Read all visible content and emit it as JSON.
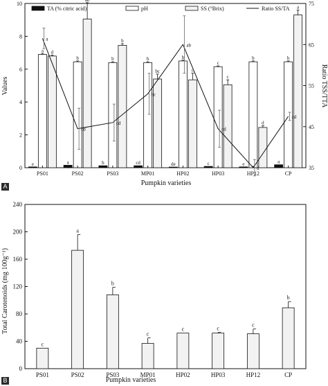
{
  "chart_data": [
    {
      "type": "bar",
      "panel_label": "A",
      "xlabel": "Pumpkin varieties",
      "ylabel": "Values",
      "y2label": "Ratio TSS/TTA",
      "categories": [
        "PS01",
        "PS02",
        "PS03",
        "MP01",
        "HP02",
        "HP03",
        "HP12",
        "CP"
      ],
      "ylim": [
        0,
        10
      ],
      "yticks": [
        0,
        2,
        4,
        6,
        8,
        10
      ],
      "y2lim": [
        35,
        75
      ],
      "y2ticks": [
        35,
        45,
        55,
        65,
        75
      ],
      "legend_position": "top",
      "series": [
        {
          "name": "TA (% citric acid)",
          "kind": "bar",
          "fill": "#111111",
          "axis": "left",
          "values": [
            0.05,
            0.15,
            0.12,
            0.12,
            0.04,
            0.08,
            0.05,
            0.18
          ],
          "errors": [
            0,
            0,
            0,
            0,
            0,
            0,
            0,
            0
          ],
          "letters": [
            "e",
            "a",
            "b",
            "cd",
            "de",
            "c",
            "e",
            "a"
          ]
        },
        {
          "name": "pH",
          "kind": "bar",
          "fill": "#ffffff",
          "axis": "left",
          "values": [
            6.9,
            6.45,
            6.4,
            6.4,
            6.5,
            6.15,
            6.45,
            6.45
          ],
          "errors": [
            0.05,
            0.05,
            0.05,
            0.05,
            0.05,
            0.05,
            0.05,
            0.05
          ],
          "letters": [
            "a",
            "b",
            "b",
            "b",
            "b",
            "c",
            "b",
            "b"
          ]
        },
        {
          "name": "SS (°Brix)",
          "kind": "bar",
          "fill": "#f2f2f2",
          "axis": "left",
          "values": [
            6.8,
            9.05,
            7.45,
            5.4,
            5.35,
            5.05,
            2.45,
            9.3
          ],
          "errors": [
            0.05,
            1.0,
            0.1,
            0.3,
            0.4,
            0.3,
            0.1,
            0.3
          ],
          "letters": [
            "d",
            "ab",
            "b",
            "bc",
            "c",
            "c",
            "d",
            "a"
          ]
        },
        {
          "name": "Ratio SS/TA",
          "kind": "line",
          "axis": "right",
          "values": [
            66.5,
            44.5,
            46.0,
            53.0,
            65.0,
            44.5,
            35.0,
            47.5
          ],
          "errors": [
            2.5,
            5.0,
            4.5,
            5.0,
            7.0,
            4.5,
            2.0,
            1.0
          ],
          "letters": [
            "a",
            "cd",
            "cd",
            "bc",
            "ab",
            "cd",
            "d",
            "cd"
          ]
        }
      ]
    },
    {
      "type": "bar",
      "panel_label": "B",
      "xlabel": "Pumpkin varieties",
      "ylabel": "Total Carotenoids (mg 100g⁻¹)",
      "categories": [
        "PS01",
        "PS02",
        "PS03",
        "MP01",
        "HP02",
        "HP03",
        "HP12",
        "CP"
      ],
      "ylim": [
        0,
        240
      ],
      "yticks": [
        0,
        40,
        80,
        120,
        160,
        200,
        240
      ],
      "series": [
        {
          "name": "Total Carotenoids",
          "fill": "#f2f2f2",
          "values": [
            30,
            173,
            108,
            37,
            52,
            52,
            51,
            89
          ],
          "errors": [
            0,
            23,
            11,
            8,
            0,
            1,
            7,
            9
          ],
          "letters": [
            "c",
            "a",
            "b",
            "c",
            "c",
            "c",
            "c",
            "b"
          ]
        }
      ]
    }
  ]
}
